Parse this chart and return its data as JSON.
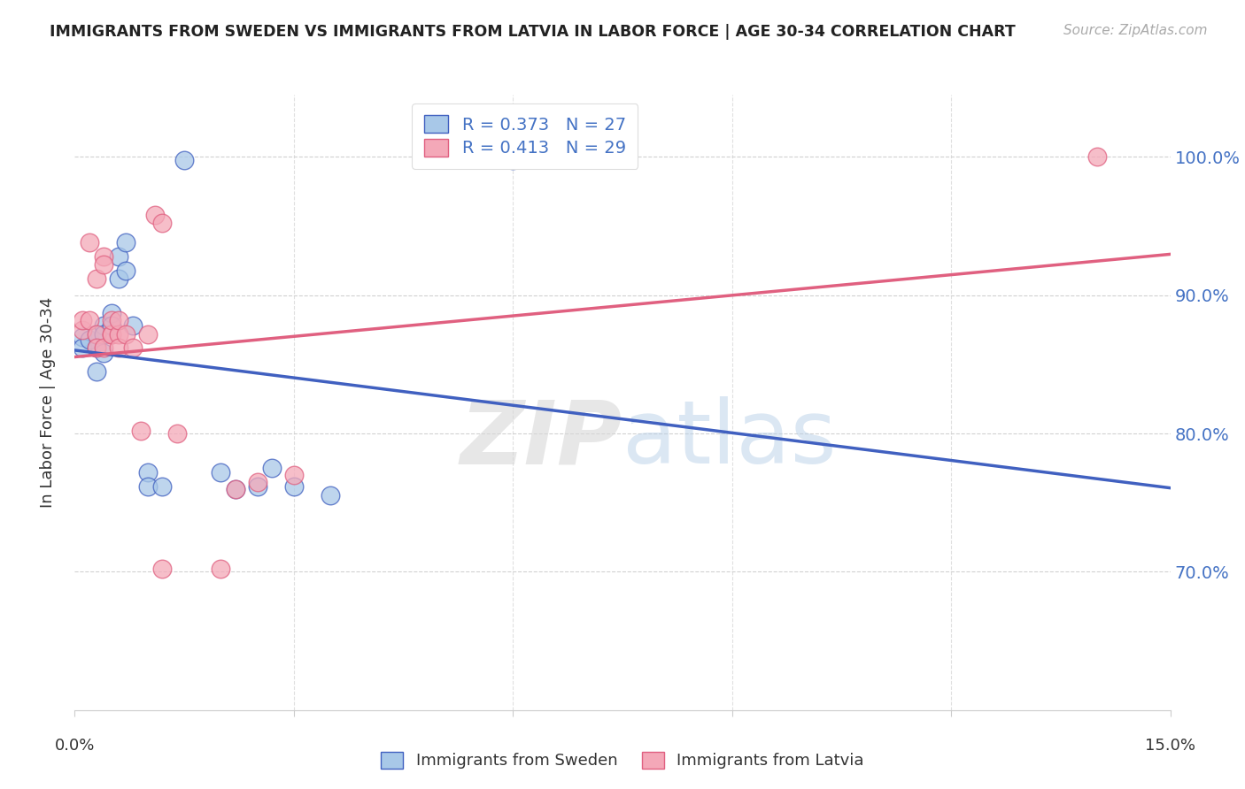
{
  "title": "IMMIGRANTS FROM SWEDEN VS IMMIGRANTS FROM LATVIA IN LABOR FORCE | AGE 30-34 CORRELATION CHART",
  "source": "Source: ZipAtlas.com",
  "ylabel": "In Labor Force | Age 30-34",
  "yticks": [
    70.0,
    80.0,
    90.0,
    100.0
  ],
  "xlim": [
    0.0,
    0.15
  ],
  "ylim": [
    0.6,
    1.045
  ],
  "legend_sweden": "Immigrants from Sweden",
  "legend_latvia": "Immigrants from Latvia",
  "R_sweden": 0.373,
  "N_sweden": 27,
  "R_latvia": 0.413,
  "N_latvia": 29,
  "color_sweden": "#a8c8e8",
  "color_latvia": "#f4a8b8",
  "line_color_sweden": "#4060c0",
  "line_color_latvia": "#e06080",
  "watermark_zip": "ZIP",
  "watermark_atlas": "atlas",
  "sweden_x": [
    0.001,
    0.001,
    0.002,
    0.003,
    0.003,
    0.003,
    0.004,
    0.004,
    0.004,
    0.005,
    0.005,
    0.006,
    0.006,
    0.007,
    0.007,
    0.008,
    0.01,
    0.01,
    0.012,
    0.015,
    0.02,
    0.022,
    0.025,
    0.027,
    0.03,
    0.035,
    0.06
  ],
  "sweden_y": [
    0.87,
    0.862,
    0.868,
    0.862,
    0.872,
    0.845,
    0.878,
    0.872,
    0.858,
    0.887,
    0.878,
    0.928,
    0.912,
    0.938,
    0.918,
    0.878,
    0.772,
    0.762,
    0.762,
    0.998,
    0.772,
    0.76,
    0.762,
    0.775,
    0.762,
    0.755,
    0.998
  ],
  "latvia_x": [
    0.001,
    0.001,
    0.002,
    0.002,
    0.003,
    0.003,
    0.003,
    0.004,
    0.004,
    0.004,
    0.005,
    0.005,
    0.005,
    0.006,
    0.006,
    0.006,
    0.007,
    0.008,
    0.009,
    0.01,
    0.011,
    0.012,
    0.012,
    0.014,
    0.02,
    0.022,
    0.025,
    0.03,
    0.14
  ],
  "latvia_y": [
    0.875,
    0.882,
    0.882,
    0.938,
    0.872,
    0.862,
    0.912,
    0.928,
    0.922,
    0.862,
    0.872,
    0.872,
    0.882,
    0.872,
    0.882,
    0.862,
    0.872,
    0.862,
    0.802,
    0.872,
    0.958,
    0.952,
    0.702,
    0.8,
    0.702,
    0.76,
    0.765,
    0.77,
    1.0
  ]
}
